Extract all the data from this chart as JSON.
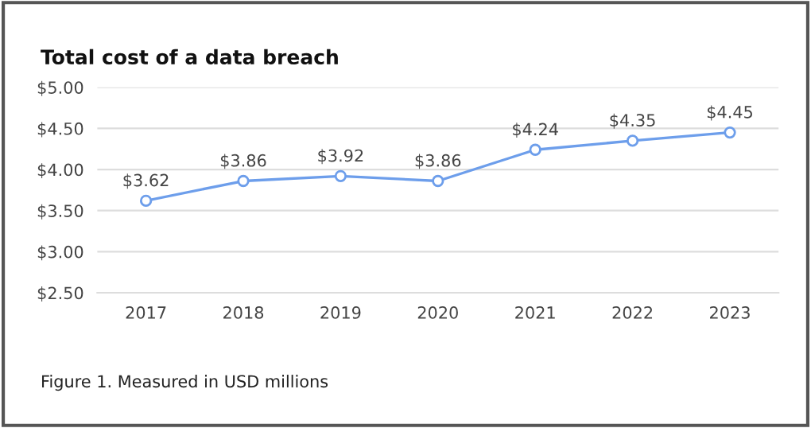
{
  "chart_data": {
    "type": "line",
    "title": "Total cost of a data breach",
    "categories": [
      "2017",
      "2018",
      "2019",
      "2020",
      "2021",
      "2022",
      "2023"
    ],
    "series": [
      {
        "color": "#6d9eeb",
        "values": [
          3.62,
          3.86,
          3.92,
          3.86,
          4.24,
          4.35,
          4.45
        ],
        "value_labels": [
          "$3.62",
          "$3.86",
          "$3.92",
          "$3.86",
          "$4.24",
          "$4.35",
          "$4.45"
        ]
      }
    ],
    "ylim": [
      2.5,
      5.0
    ],
    "yticks": [
      {
        "value": 2.5,
        "label": "$2.50"
      },
      {
        "value": 3.0,
        "label": "$3.00"
      },
      {
        "value": 3.5,
        "label": "$3.50"
      },
      {
        "value": 4.0,
        "label": "$4.00"
      },
      {
        "value": 4.5,
        "label": "$4.50"
      },
      {
        "value": 5.0,
        "label": "$5.00"
      }
    ],
    "grid": "y",
    "marker": "circle",
    "line_style": "solid",
    "annotations": [
      "Figure 1. Measured in USD millions"
    ]
  }
}
